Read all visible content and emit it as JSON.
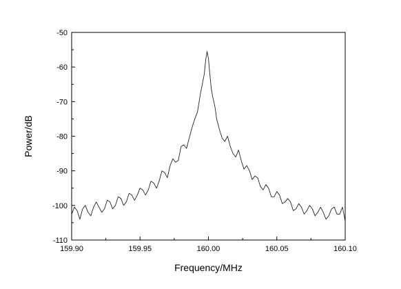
{
  "chart_data": {
    "type": "line",
    "title": "",
    "xlabel": "Frequency/MHz",
    "ylabel": "Power/dB",
    "xlim": [
      159.9,
      160.1
    ],
    "ylim": [
      -110,
      -50
    ],
    "xticks": [
      159.9,
      159.95,
      160.0,
      160.05,
      160.1
    ],
    "xtick_labels": [
      "159.90",
      "159.95",
      "160.00",
      "160.05",
      "160.10"
    ],
    "yticks": [
      -110,
      -100,
      -90,
      -80,
      -70,
      -60,
      -50
    ],
    "ytick_labels": [
      "-110",
      "-100",
      "-90",
      "-80",
      "-70",
      "-60",
      "-50"
    ],
    "grid": false,
    "legend": "none",
    "line_color": "#222222",
    "series": [
      {
        "x": [
          159.9,
          159.902,
          159.904,
          159.906,
          159.908,
          159.91,
          159.912,
          159.914,
          159.916,
          159.918,
          159.92,
          159.922,
          159.924,
          159.926,
          159.928,
          159.93,
          159.932,
          159.934,
          159.936,
          159.938,
          159.94,
          159.942,
          159.944,
          159.946,
          159.948,
          159.95,
          159.952,
          159.954,
          159.956,
          159.958,
          159.96,
          159.962,
          159.964,
          159.966,
          159.968,
          159.97,
          159.972,
          159.974,
          159.976,
          159.978,
          159.98,
          159.982,
          159.984,
          159.986,
          159.988,
          159.99,
          159.992,
          159.994,
          159.995,
          159.996,
          159.997,
          159.998,
          159.999,
          160.0,
          160.001,
          160.002,
          160.003,
          160.004,
          160.005,
          160.006,
          160.008,
          160.01,
          160.012,
          160.014,
          160.016,
          160.018,
          160.02,
          160.022,
          160.024,
          160.026,
          160.028,
          160.03,
          160.032,
          160.034,
          160.036,
          160.038,
          160.04,
          160.042,
          160.044,
          160.046,
          160.048,
          160.05,
          160.052,
          160.054,
          160.056,
          160.058,
          160.06,
          160.062,
          160.064,
          160.066,
          160.068,
          160.07,
          160.072,
          160.074,
          160.076,
          160.078,
          160.08,
          160.082,
          160.084,
          160.086,
          160.088,
          160.09,
          160.092,
          160.094,
          160.096,
          160.098,
          160.1
        ],
        "y": [
          -102.5,
          -100.5,
          -101.5,
          -104,
          -101,
          -100,
          -102,
          -103,
          -100.5,
          -99,
          -100.5,
          -102,
          -101,
          -98.5,
          -99,
          -101,
          -100,
          -97.5,
          -98,
          -100,
          -99,
          -96.5,
          -97,
          -98.5,
          -97,
          -95,
          -95.5,
          -97,
          -95.5,
          -93,
          -93.5,
          -95,
          -93,
          -90,
          -90.5,
          -92,
          -88.5,
          -86.5,
          -87.5,
          -87,
          -83,
          -82.5,
          -83.5,
          -80.5,
          -77.5,
          -75,
          -73,
          -68,
          -66,
          -64,
          -62,
          -58,
          -55.5,
          -57.5,
          -62,
          -66,
          -68.5,
          -70,
          -72,
          -75,
          -78,
          -80.5,
          -81.5,
          -80,
          -83,
          -85,
          -86,
          -84,
          -87,
          -89.5,
          -88.5,
          -90,
          -92.5,
          -91.5,
          -92,
          -94.5,
          -95.5,
          -94,
          -95,
          -97.5,
          -97.5,
          -96,
          -97,
          -99.5,
          -99,
          -98,
          -99,
          -101.5,
          -101,
          -99.5,
          -100.5,
          -102.5,
          -101.5,
          -100,
          -101,
          -103,
          -102,
          -100.5,
          -102,
          -104,
          -103,
          -101,
          -100.5,
          -102.5,
          -102.5,
          -100.5,
          -104.5
        ]
      }
    ]
  }
}
